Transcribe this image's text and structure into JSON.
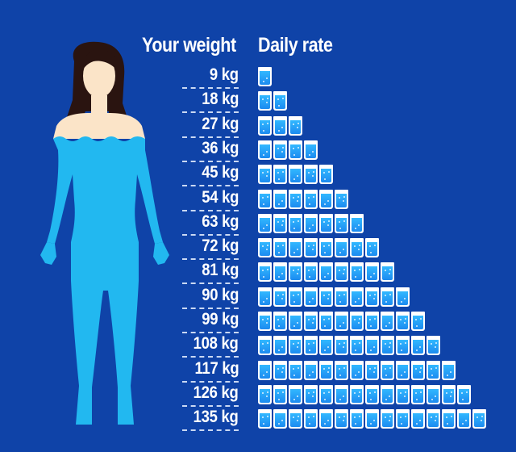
{
  "headers": {
    "weight": "Your weight",
    "rate": "Daily rate"
  },
  "rows": [
    {
      "weight": "9 kg",
      "glasses": 1
    },
    {
      "weight": "18 kg",
      "glasses": 2
    },
    {
      "weight": "27 kg",
      "glasses": 3
    },
    {
      "weight": "36 kg",
      "glasses": 4
    },
    {
      "weight": "45 kg",
      "glasses": 5
    },
    {
      "weight": "54 kg",
      "glasses": 6
    },
    {
      "weight": "63 kg",
      "glasses": 7
    },
    {
      "weight": "72 kg",
      "glasses": 8
    },
    {
      "weight": "81 kg",
      "glasses": 9
    },
    {
      "weight": "90 kg",
      "glasses": 10
    },
    {
      "weight": "99 kg",
      "glasses": 11
    },
    {
      "weight": "108 kg",
      "glasses": 12
    },
    {
      "weight": "117 kg",
      "glasses": 13
    },
    {
      "weight": "126 kg",
      "glasses": 14
    },
    {
      "weight": "135 kg",
      "glasses": 15
    }
  ],
  "colors": {
    "background": "#0f43a8",
    "bodysuit": "#22b8f0",
    "skin": "#fbe4c8",
    "hair": "#2a1410",
    "water": "#2aa7fb",
    "glass_rim": "#ffffff"
  },
  "icons": {
    "figure": "woman-silhouette-icon",
    "glass": "water-glass-icon"
  }
}
